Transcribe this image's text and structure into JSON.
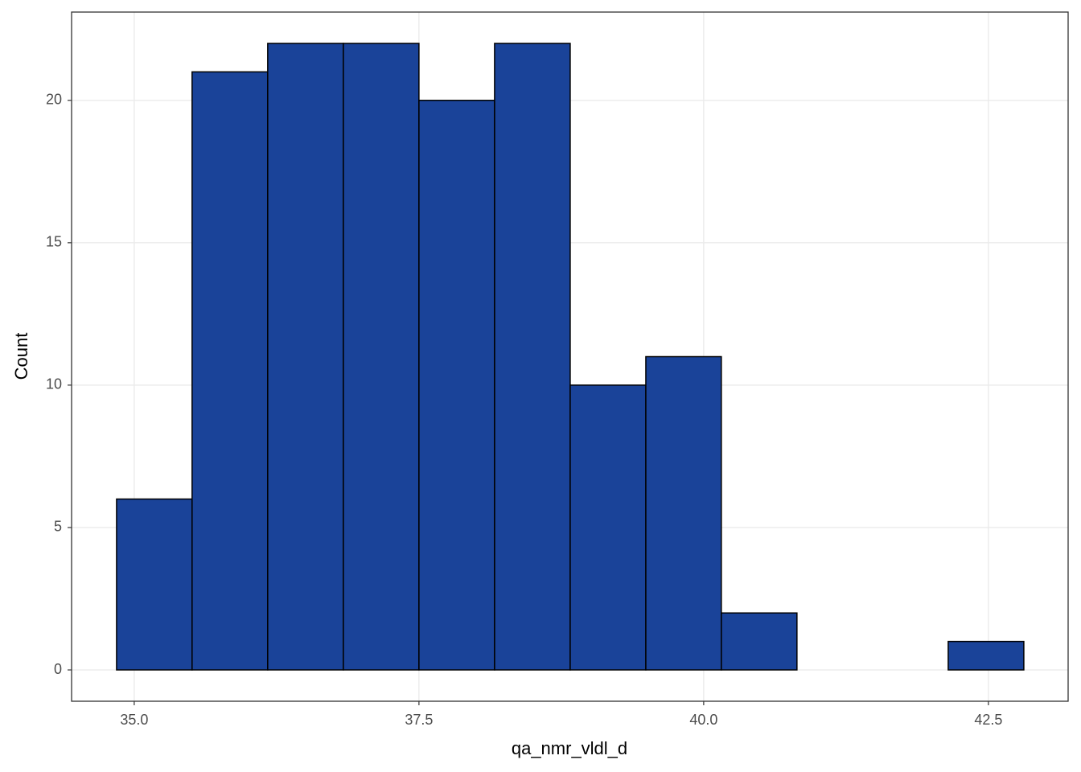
{
  "chart_data": {
    "type": "histogram",
    "x_label": "qa_nmr_vldl_d",
    "y_label": "Count",
    "bins": [
      34.845,
      35.508,
      36.172,
      36.836,
      37.5,
      38.164,
      38.828,
      39.492,
      40.155,
      40.819,
      41.483,
      42.147,
      42.811
    ],
    "counts": [
      6,
      21,
      22,
      22,
      20,
      22,
      10,
      11,
      2,
      0,
      0,
      1
    ],
    "color": "#1a4399",
    "xlim": [
      34.45,
      43.2
    ],
    "ylim": [
      -1.1,
      23.1
    ],
    "xticks": [
      {
        "value": 35,
        "label": "35.0"
      },
      {
        "value": 37.5,
        "label": "37.5"
      },
      {
        "value": 40,
        "label": "40.0"
      },
      {
        "value": 42.5,
        "label": "42.5"
      }
    ],
    "yticks": [
      0,
      5,
      10,
      15,
      20
    ],
    "grid": true
  }
}
